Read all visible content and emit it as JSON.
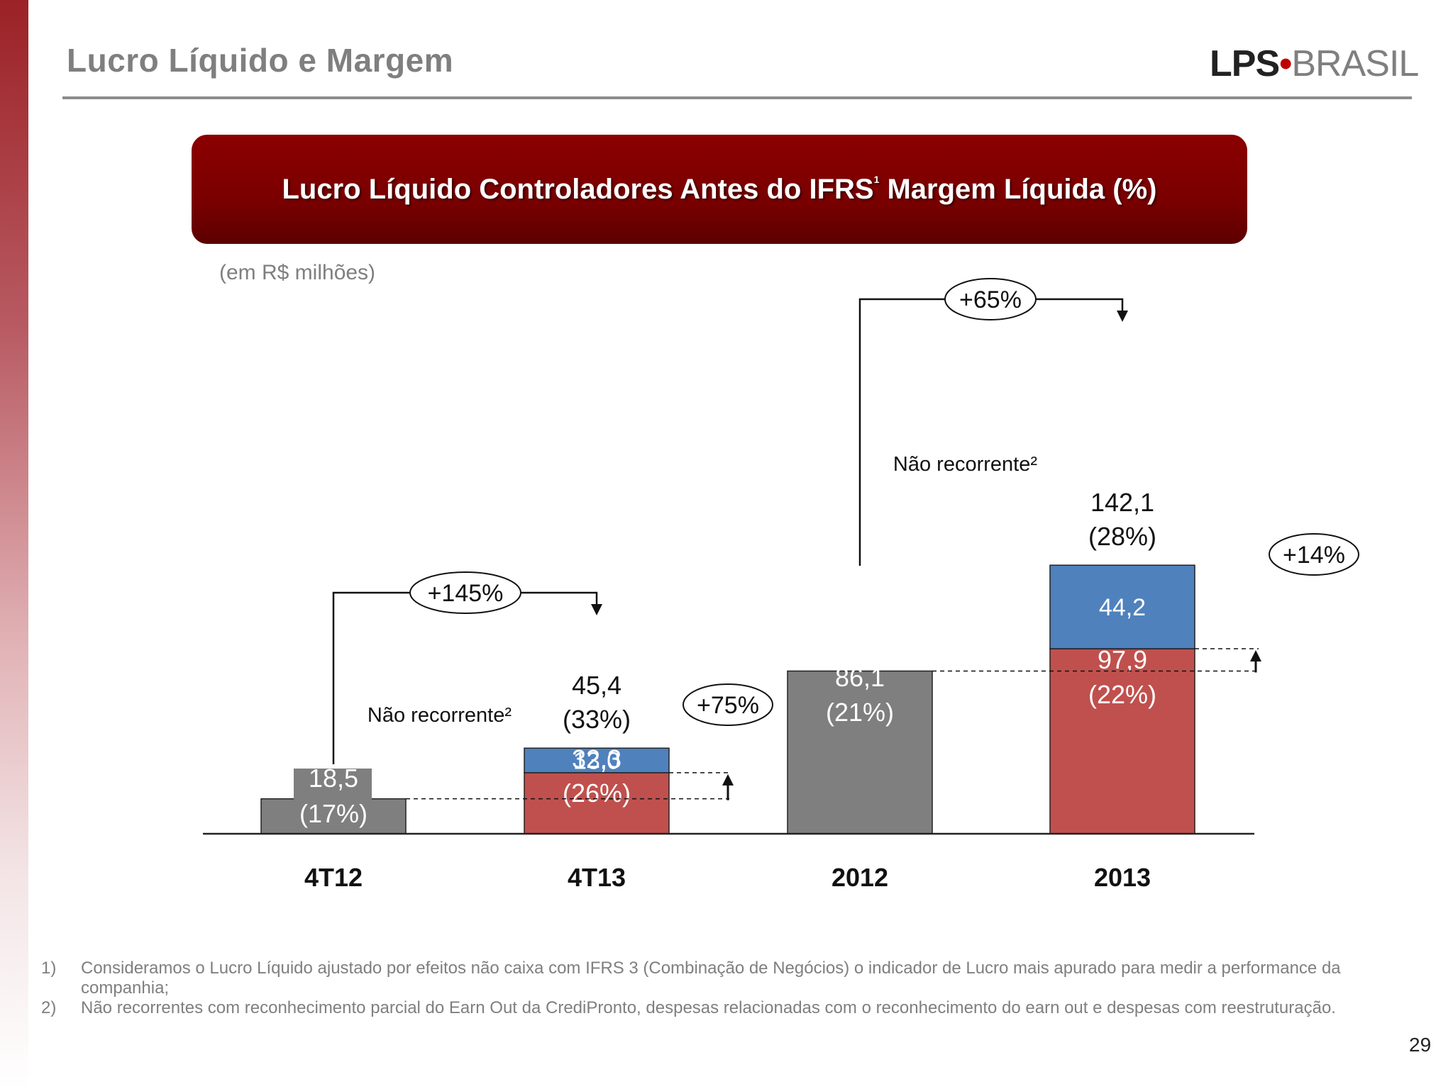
{
  "slide": {
    "title": "Lucro Líquido e Margem",
    "logo": {
      "main": "LPS",
      "separator": "•",
      "secondary": "BRASIL"
    },
    "banner_text": "Lucro Líquido Controladores Antes do IFRS",
    "banner_superscript": "1",
    "banner_text_2": " Margem Líquida (%)",
    "unit_label": "(em R$ milhões)",
    "page_number": "29"
  },
  "colors": {
    "gray_bar": "#7f7f7f",
    "red_bar": "#c0504d",
    "blue_bar": "#4f81bd",
    "banner": "#7a0000"
  },
  "chart_data": {
    "type": "bar",
    "stacked": true,
    "categories": [
      "4T12",
      "4T13",
      "2012",
      "2013"
    ],
    "series": [
      {
        "values": [
          18.5,
          32.3,
          86.1,
          97.9
        ],
        "margins": [
          "(17%)",
          "(26%)",
          "(21%)",
          "(22%)"
        ],
        "labels": [
          "18,5",
          "32,3",
          "86,1",
          "97,9"
        ]
      },
      {
        "name": "Não recorrente²",
        "values": [
          null,
          13.0,
          null,
          44.2
        ],
        "labels": [
          null,
          "13,0",
          null,
          "44,2"
        ]
      }
    ],
    "totals": [
      null,
      {
        "value": 45.4,
        "label": "45,4",
        "margin": "(33%)"
      },
      null,
      {
        "value": 142.1,
        "label": "142,1",
        "margin": "(28%)"
      }
    ],
    "growth_annotations": [
      {
        "from": "4T12",
        "to": "4T13",
        "label": "+145%",
        "kind": "total"
      },
      {
        "from": "4T12",
        "to": "4T13",
        "label": "+75%",
        "kind": "recurring"
      },
      {
        "from": "2012",
        "to": "2013",
        "label": "+65%",
        "kind": "total"
      },
      {
        "from": "2012",
        "to": "2013",
        "label": "+14%",
        "kind": "recurring"
      }
    ],
    "ylim": [
      0,
      142.1
    ],
    "grid": false,
    "legend": "none"
  },
  "footnotes": [
    {
      "number": "1)",
      "text": "Consideramos o Lucro Líquido ajustado  por efeitos não caixa com IFRS 3 (Combinação de Negócios) o indicador de Lucro mais apurado para medir a performance da companhia;"
    },
    {
      "number": "2)",
      "text": "Não recorrentes com reconhecimento parcial do Earn Out da CrediPronto, despesas relacionadas com o reconhecimento do earn out e despesas com reestruturação."
    }
  ]
}
